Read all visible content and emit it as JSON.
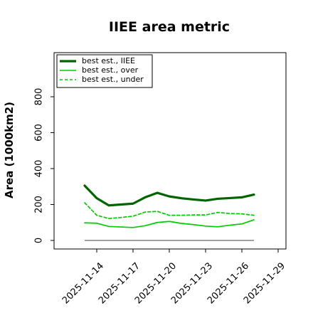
{
  "chart_data": {
    "type": "line",
    "title": "IIEE area metric",
    "xlabel": "",
    "ylabel": "Area (1000km2)",
    "x_ticks": [
      "2025-11-14",
      "2025-11-17",
      "2025-11-20",
      "2025-11-23",
      "2025-11-26",
      "2025-11-29"
    ],
    "y_ticks": [
      "0",
      "200",
      "400",
      "600",
      "800"
    ],
    "x": [
      "2025-11-13",
      "2025-11-14",
      "2025-11-15",
      "2025-11-16",
      "2025-11-17",
      "2025-11-18",
      "2025-11-19",
      "2025-11-20",
      "2025-11-21",
      "2025-11-22",
      "2025-11-23",
      "2025-11-24",
      "2025-11-25",
      "2025-11-26",
      "2025-11-27"
    ],
    "xlim": [
      "2025-11-12",
      "2025-11-30"
    ],
    "ylim": [
      -20,
      1040
    ],
    "grid": false,
    "legend_position": "top-left",
    "baseline": 0,
    "series": [
      {
        "name": "best est., IIEE",
        "color": "#006400",
        "style": "solid",
        "values": [
          305,
          235,
          195,
          200,
          205,
          240,
          265,
          245,
          235,
          228,
          222,
          232,
          236,
          240,
          255
        ]
      },
      {
        "name": "best est., over",
        "color": "#00cc00",
        "style": "solid",
        "values": [
          98,
          96,
          78,
          75,
          72,
          82,
          100,
          106,
          95,
          88,
          80,
          76,
          85,
          92,
          115
        ]
      },
      {
        "name": "best est., under",
        "color": "#00cc00",
        "style": "dashed",
        "values": [
          210,
          140,
          122,
          128,
          135,
          158,
          162,
          140,
          140,
          142,
          142,
          156,
          150,
          148,
          140
        ]
      }
    ]
  }
}
